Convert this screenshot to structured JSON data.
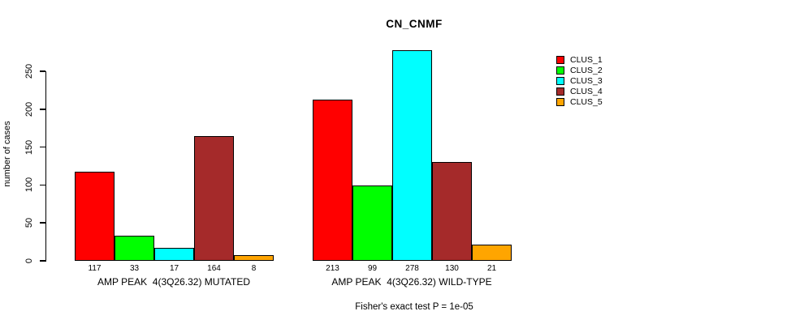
{
  "title": "CN_CNMF",
  "y_axis": {
    "label": "number of cases",
    "ticks": [
      0,
      50,
      100,
      150,
      200,
      250
    ]
  },
  "chart_data": {
    "type": "bar",
    "title": "CN_CNMF",
    "ylabel": "number of cases",
    "ylim": [
      0,
      250
    ],
    "grid": false,
    "legend_position": "right-outside",
    "series_names": [
      "CLUS_1",
      "CLUS_2",
      "CLUS_3",
      "CLUS_4",
      "CLUS_5"
    ],
    "series_colors": [
      "#FF0000",
      "#00FF00",
      "#00FFFF",
      "#A52A2A",
      "#FFA500"
    ],
    "groups": [
      {
        "label": "AMP PEAK  4(3Q26.32) MUTATED",
        "values": [
          117,
          33,
          17,
          164,
          8
        ]
      },
      {
        "label": "AMP PEAK  4(3Q26.32) WILD-TYPE",
        "values": [
          213,
          99,
          278,
          130,
          21
        ]
      }
    ],
    "annotation": "Fisher's exact test P = 1e-05"
  },
  "legend": {
    "items": [
      {
        "label": "CLUS_1",
        "color": "#FF0000"
      },
      {
        "label": "CLUS_2",
        "color": "#00FF00"
      },
      {
        "label": "CLUS_3",
        "color": "#00FFFF"
      },
      {
        "label": "CLUS_4",
        "color": "#A52A2A"
      },
      {
        "label": "CLUS_5",
        "color": "#FFA500"
      }
    ]
  },
  "footer": "Fisher's exact test P = 1e-05"
}
